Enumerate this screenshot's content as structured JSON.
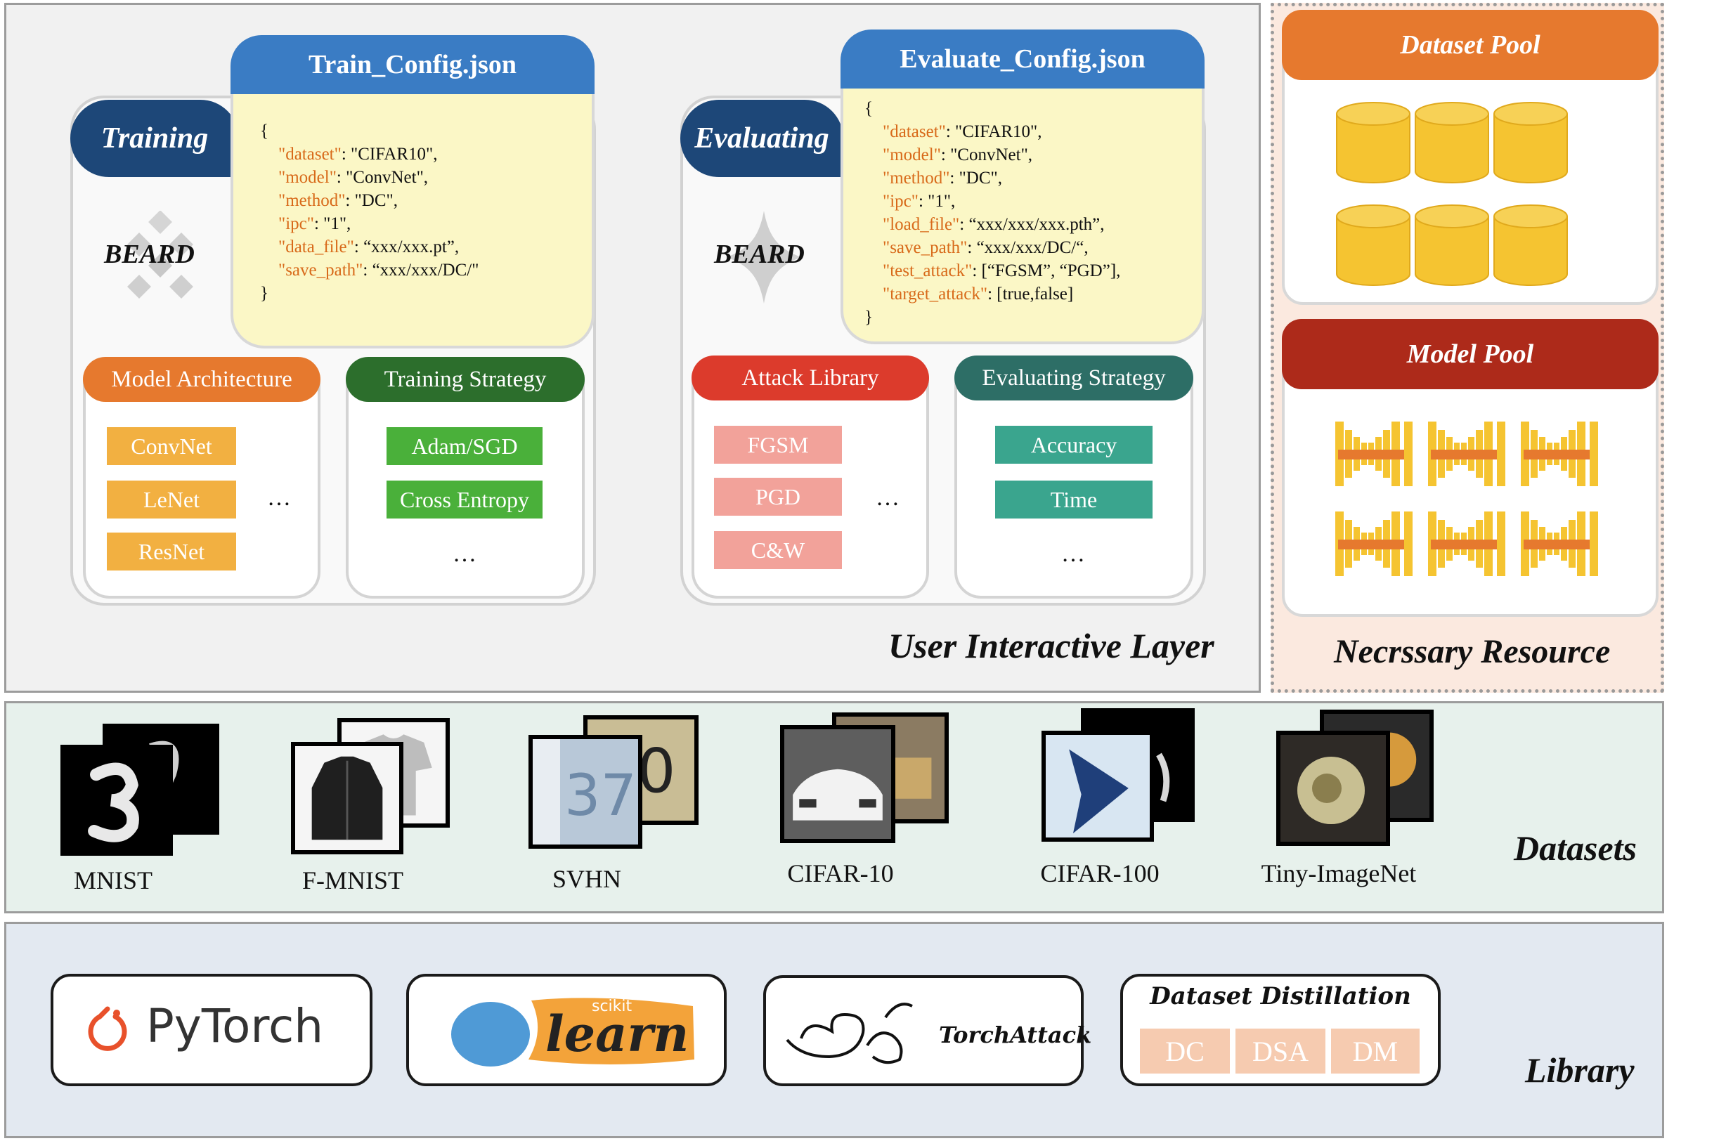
{
  "user_layer": {
    "label": "User Interactive Layer",
    "training": {
      "tab": "Training",
      "logo_text": "BEARD",
      "config_title": "Train_Config.json",
      "config_lines": [
        {
          "key": "",
          "rest": "{"
        },
        {
          "key": "\"dataset\"",
          "rest": ": \"CIFAR10\","
        },
        {
          "key": "\"model\"",
          "rest": ": \"ConvNet\","
        },
        {
          "key": "\"method\"",
          "rest": ": \"DC\","
        },
        {
          "key": "\"ipc\"",
          "rest": ": \"1\","
        },
        {
          "key": "\"data_file\"",
          "rest": ": “xxx/xxx.pt”,"
        },
        {
          "key": "\"save_path\"",
          "rest": ": “xxx/xxx/DC/\""
        },
        {
          "key": "",
          "rest": "}"
        }
      ],
      "model_arch": {
        "title": "Model Architecture",
        "items": [
          "ConvNet",
          "LeNet",
          "ResNet"
        ],
        "more": "…"
      },
      "train_strategy": {
        "title": "Training Strategy",
        "items": [
          "Adam/SGD",
          "Cross Entropy"
        ],
        "more": "…"
      }
    },
    "evaluating": {
      "tab": "Evaluating",
      "logo_text": "BEARD",
      "config_title": "Evaluate_Config.json",
      "config_lines": [
        {
          "key": "",
          "rest": "{"
        },
        {
          "key": "\"dataset\"",
          "rest": ": \"CIFAR10\","
        },
        {
          "key": "\"model\"",
          "rest": ": \"ConvNet\","
        },
        {
          "key": "\"method\"",
          "rest": ": \"DC\","
        },
        {
          "key": "\"ipc\"",
          "rest": ": \"1\","
        },
        {
          "key": "\"load_file\"",
          "rest": ": “xxx/xxx/xxx.pth”,"
        },
        {
          "key": "\"save_path\"",
          "rest": ": “xxx/xxx/DC/“,"
        },
        {
          "key": "\"test_attack\"",
          "rest": ": [“FGSM”, “PGD”],"
        },
        {
          "key": "\"target_attack\"",
          "rest": ": [true,false]"
        },
        {
          "key": "",
          "rest": "}"
        }
      ],
      "attack_lib": {
        "title": "Attack Library",
        "items": [
          "FGSM",
          "PGD",
          "C&W"
        ],
        "more": "…"
      },
      "eval_strategy": {
        "title": "Evaluating Strategy",
        "items": [
          "Accuracy",
          "Time"
        ],
        "more": "…"
      }
    }
  },
  "resources": {
    "label": "Necrssary Resource",
    "dataset_pool": "Dataset Pool",
    "model_pool": "Model Pool"
  },
  "datasets": {
    "label": "Datasets",
    "items": [
      "MNIST",
      "F-MNIST",
      "SVHN",
      "CIFAR-10",
      "CIFAR-100",
      "Tiny-ImageNet"
    ]
  },
  "library": {
    "label": "Library",
    "pytorch": "PyTorch",
    "sklearn_small": "scikit",
    "sklearn_big": "learn",
    "torchattack": "TorchAttack",
    "distill_title": "Dataset Distillation",
    "distill_items": [
      "DC",
      "DSA",
      "DM"
    ]
  },
  "colors": {
    "tab_dark": "#1d4778",
    "json_head": "#3a7cc4",
    "json_bg": "#fbf7c6",
    "arch_head": "#e6792e",
    "arch_chip": "#f2b041",
    "train_head": "#2c6e2c",
    "train_chip": "#4ab03a",
    "attack_head": "#dc3b2c",
    "attack_chip": "#f2a29a",
    "eval_head": "#2d6e66",
    "eval_chip": "#3aa58e",
    "dataset_pool": "#e6792e",
    "model_pool": "#ad2a1a",
    "pool_gold": "#f5c431",
    "distill_chip": "#f6cbb0"
  }
}
